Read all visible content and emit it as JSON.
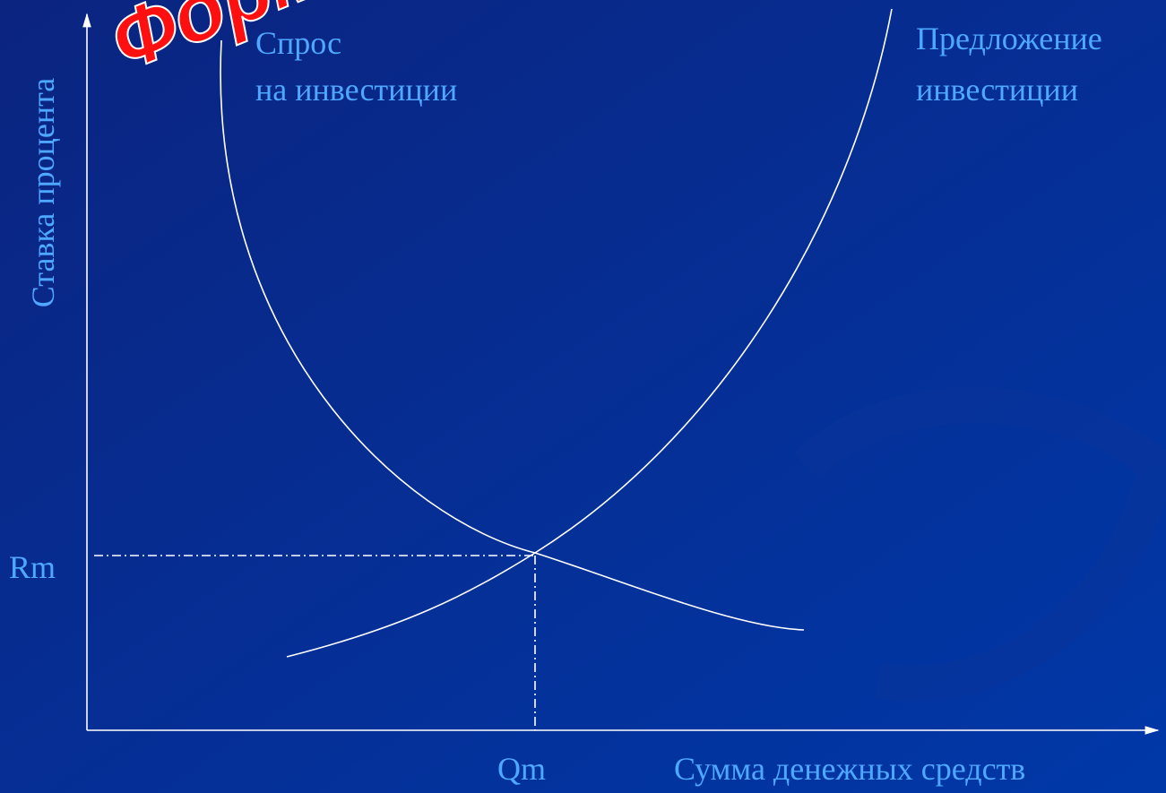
{
  "title": "Форм",
  "curves": {
    "demand": [
      "Спрос",
      "на инвестиции"
    ],
    "supply": [
      "Предложение",
      "инвестиции"
    ]
  },
  "axes": {
    "y_label": "Ставка процента",
    "x_label": "Сумма денежных средств",
    "rm": "Rm",
    "qm": "Qm"
  }
}
